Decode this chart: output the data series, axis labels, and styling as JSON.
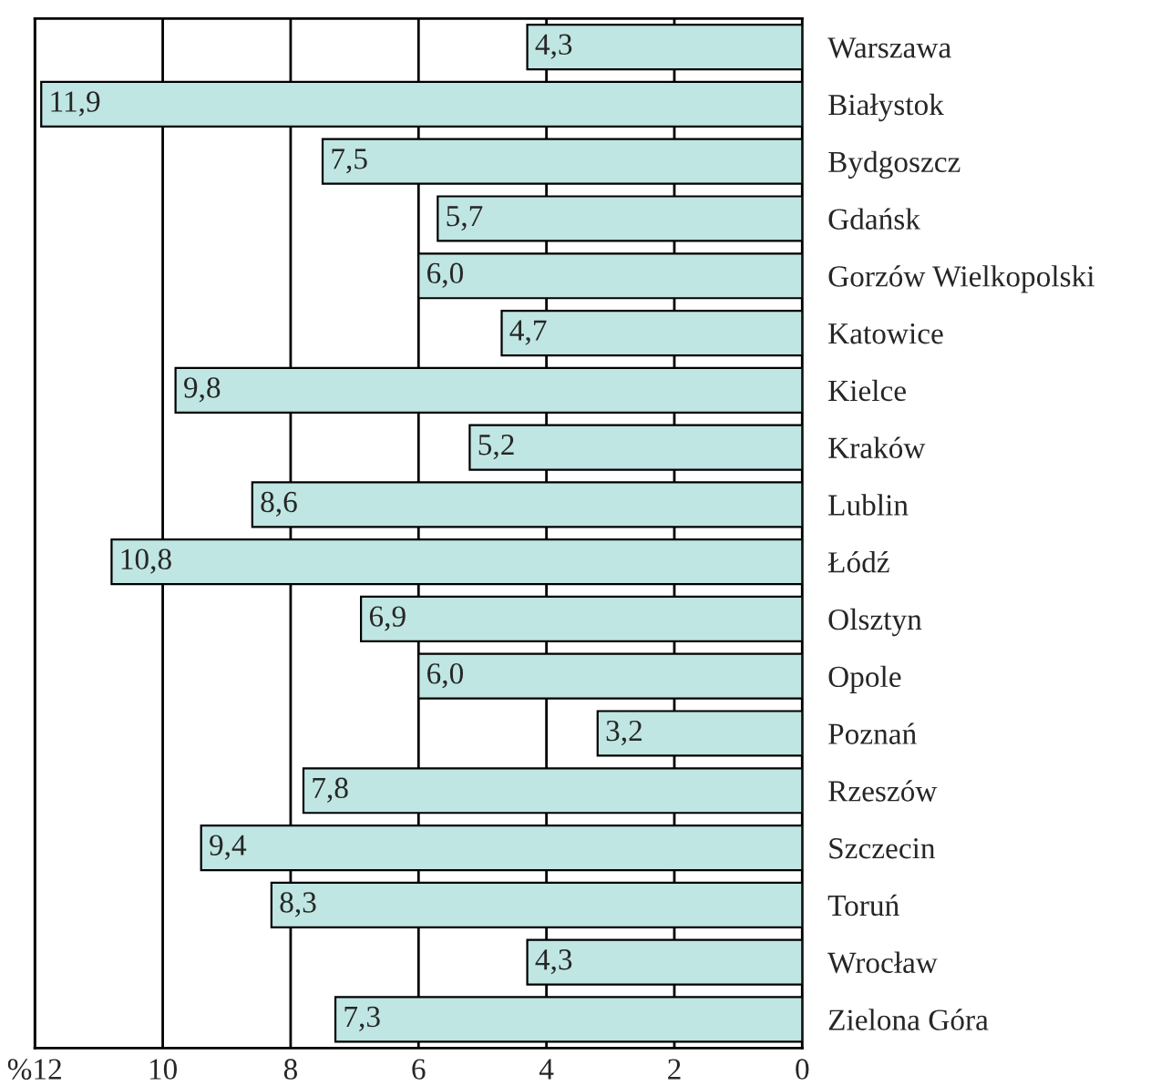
{
  "chart_data": {
    "type": "bar",
    "orientation": "horizontal",
    "categories": [
      "Warszawa",
      "Białystok",
      "Bydgoszcz",
      "Gdańsk",
      "Gorzów Wielkopolski",
      "Katowice",
      "Kielce",
      "Kraków",
      "Lublin",
      "Łódź",
      "Olsztyn",
      "Opole",
      "Poznań",
      "Rzeszów",
      "Szczecin",
      "Toruń",
      "Wrocław",
      "Zielona Góra"
    ],
    "values": [
      4.3,
      11.9,
      7.5,
      5.7,
      6.0,
      4.7,
      9.8,
      5.2,
      8.6,
      10.8,
      6.9,
      6.0,
      3.2,
      7.8,
      9.4,
      8.3,
      4.3,
      7.3
    ],
    "value_labels": [
      "4,3",
      "11,9",
      "7,5",
      "5,7",
      "6,0",
      "4,7",
      "9,8",
      "5,2",
      "8,6",
      "10,8",
      "6,9",
      "6,0",
      "3,2",
      "7,8",
      "9,4",
      "8,3",
      "4,3",
      "7,3"
    ],
    "color": "#bfe6e2",
    "xlim": [
      12,
      0
    ],
    "xticks": [
      {
        "value": 12,
        "label": "%12"
      },
      10,
      8,
      6,
      4,
      2,
      0
    ],
    "grid": "x"
  }
}
